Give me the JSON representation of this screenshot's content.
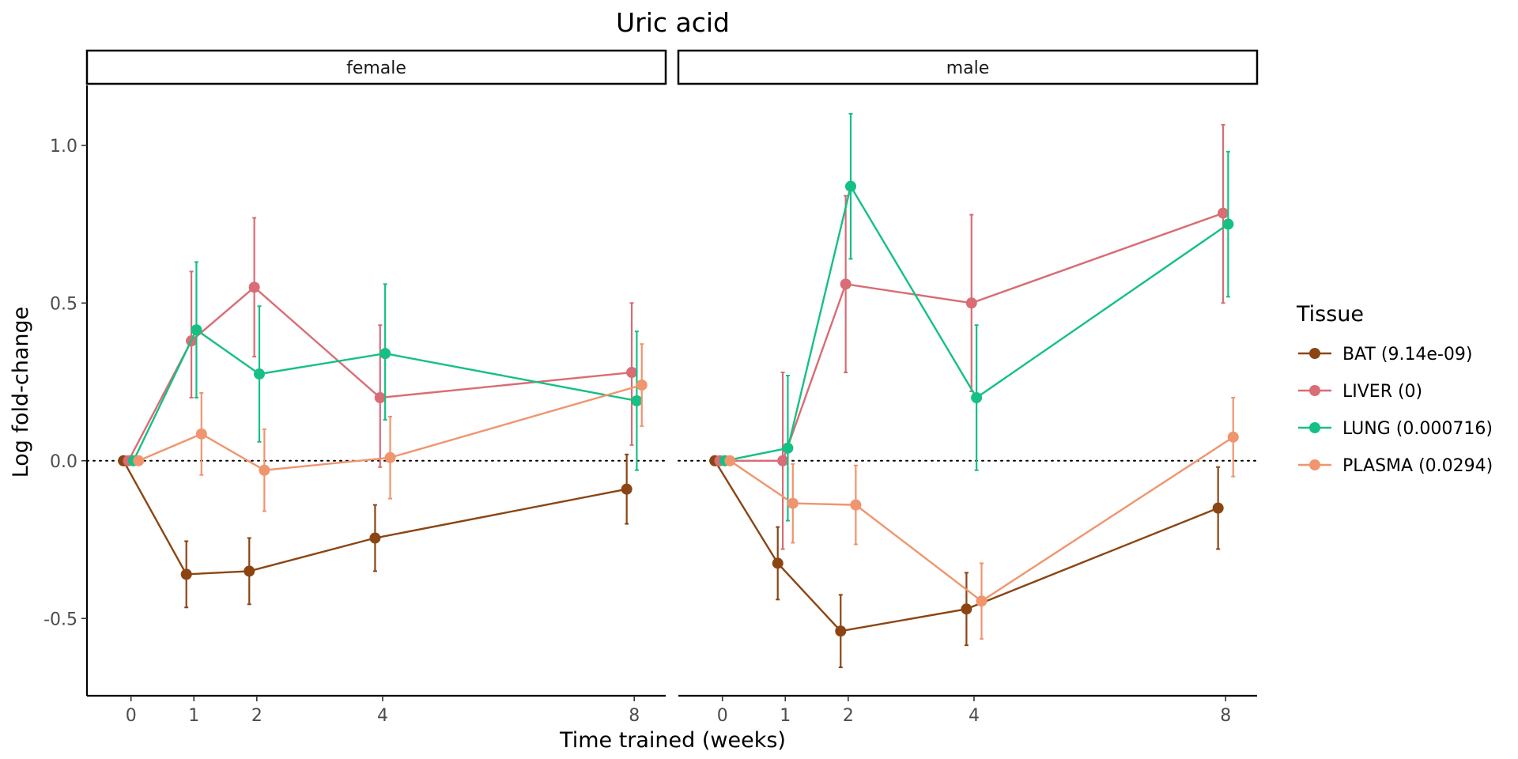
{
  "chart_data": {
    "type": "line",
    "title": "Uric acid",
    "xlabel": "Time trained (weeks)",
    "ylabel": "Log fold-change",
    "x_ticks": [
      0,
      1,
      2,
      4,
      8
    ],
    "y_ticks": [
      -0.5,
      0.0,
      0.5,
      1.0
    ],
    "y_tick_labels": [
      "-0.5",
      "0.0",
      "0.5",
      "1.0"
    ],
    "xlim": [
      -0.7,
      8.5
    ],
    "ylim": [
      -0.745,
      1.19
    ],
    "reference_line_y": 0,
    "legend": {
      "title": "Tissue",
      "position": "right"
    },
    "series_meta": [
      {
        "name": "BAT (9.14e-09)",
        "color": "#8B4513"
      },
      {
        "name": "LIVER (0)",
        "color": "#D96C75"
      },
      {
        "name": "LUNG (0.000716)",
        "color": "#15C084"
      },
      {
        "name": "PLASMA (0.0294)",
        "color": "#F0956E"
      }
    ],
    "panels": [
      {
        "label": "female",
        "series": [
          {
            "name": "BAT (9.14e-09)",
            "x": [
              0,
              1,
              2,
              4,
              8
            ],
            "y": [
              0.0,
              -0.36,
              -0.35,
              -0.245,
              -0.09
            ],
            "lower": [
              0.0,
              -0.465,
              -0.455,
              -0.35,
              -0.2
            ],
            "upper": [
              0.0,
              -0.255,
              -0.245,
              -0.14,
              0.02
            ]
          },
          {
            "name": "LIVER (0)",
            "x": [
              0,
              1,
              2,
              4,
              8
            ],
            "y": [
              0.0,
              0.38,
              0.55,
              0.2,
              0.28
            ],
            "lower": [
              0.0,
              0.2,
              0.33,
              -0.02,
              0.05
            ],
            "upper": [
              0.0,
              0.6,
              0.77,
              0.43,
              0.5
            ]
          },
          {
            "name": "LUNG (0.000716)",
            "x": [
              0,
              1,
              2,
              4,
              8
            ],
            "y": [
              0.0,
              0.415,
              0.275,
              0.34,
              0.19
            ],
            "lower": [
              0.0,
              0.2,
              0.06,
              0.13,
              -0.03
            ],
            "upper": [
              0.0,
              0.63,
              0.49,
              0.56,
              0.41
            ]
          },
          {
            "name": "PLASMA (0.0294)",
            "x": [
              0,
              1,
              2,
              4,
              8
            ],
            "y": [
              0.0,
              0.085,
              -0.03,
              0.01,
              0.24
            ],
            "lower": [
              0.0,
              -0.045,
              -0.16,
              -0.12,
              0.11
            ],
            "upper": [
              0.0,
              0.215,
              0.1,
              0.14,
              0.37
            ]
          }
        ]
      },
      {
        "label": "male",
        "series": [
          {
            "name": "BAT (9.14e-09)",
            "x": [
              0,
              1,
              2,
              4,
              8
            ],
            "y": [
              0.0,
              -0.325,
              -0.54,
              -0.47,
              -0.15
            ],
            "lower": [
              0.0,
              -0.44,
              -0.655,
              -0.585,
              -0.28
            ],
            "upper": [
              0.0,
              -0.21,
              -0.425,
              -0.355,
              -0.02
            ]
          },
          {
            "name": "LIVER (0)",
            "x": [
              0,
              1,
              2,
              4,
              8
            ],
            "y": [
              0.0,
              0.0,
              0.56,
              0.5,
              0.785
            ],
            "lower": [
              0.0,
              -0.28,
              0.28,
              0.22,
              0.5
            ],
            "upper": [
              0.0,
              0.28,
              0.84,
              0.78,
              1.065
            ]
          },
          {
            "name": "LUNG (0.000716)",
            "x": [
              0,
              1,
              2,
              4,
              8
            ],
            "y": [
              0.0,
              0.04,
              0.87,
              0.2,
              0.75
            ],
            "lower": [
              0.0,
              -0.19,
              0.64,
              -0.03,
              0.52
            ],
            "upper": [
              0.0,
              0.27,
              1.1,
              0.43,
              0.98
            ]
          },
          {
            "name": "PLASMA (0.0294)",
            "x": [
              0,
              1,
              2,
              4,
              8
            ],
            "y": [
              0.0,
              -0.135,
              -0.14,
              -0.445,
              0.075
            ],
            "lower": [
              0.0,
              -0.26,
              -0.265,
              -0.565,
              -0.05
            ],
            "upper": [
              0.0,
              -0.01,
              -0.015,
              -0.325,
              0.2
            ]
          }
        ]
      }
    ]
  }
}
